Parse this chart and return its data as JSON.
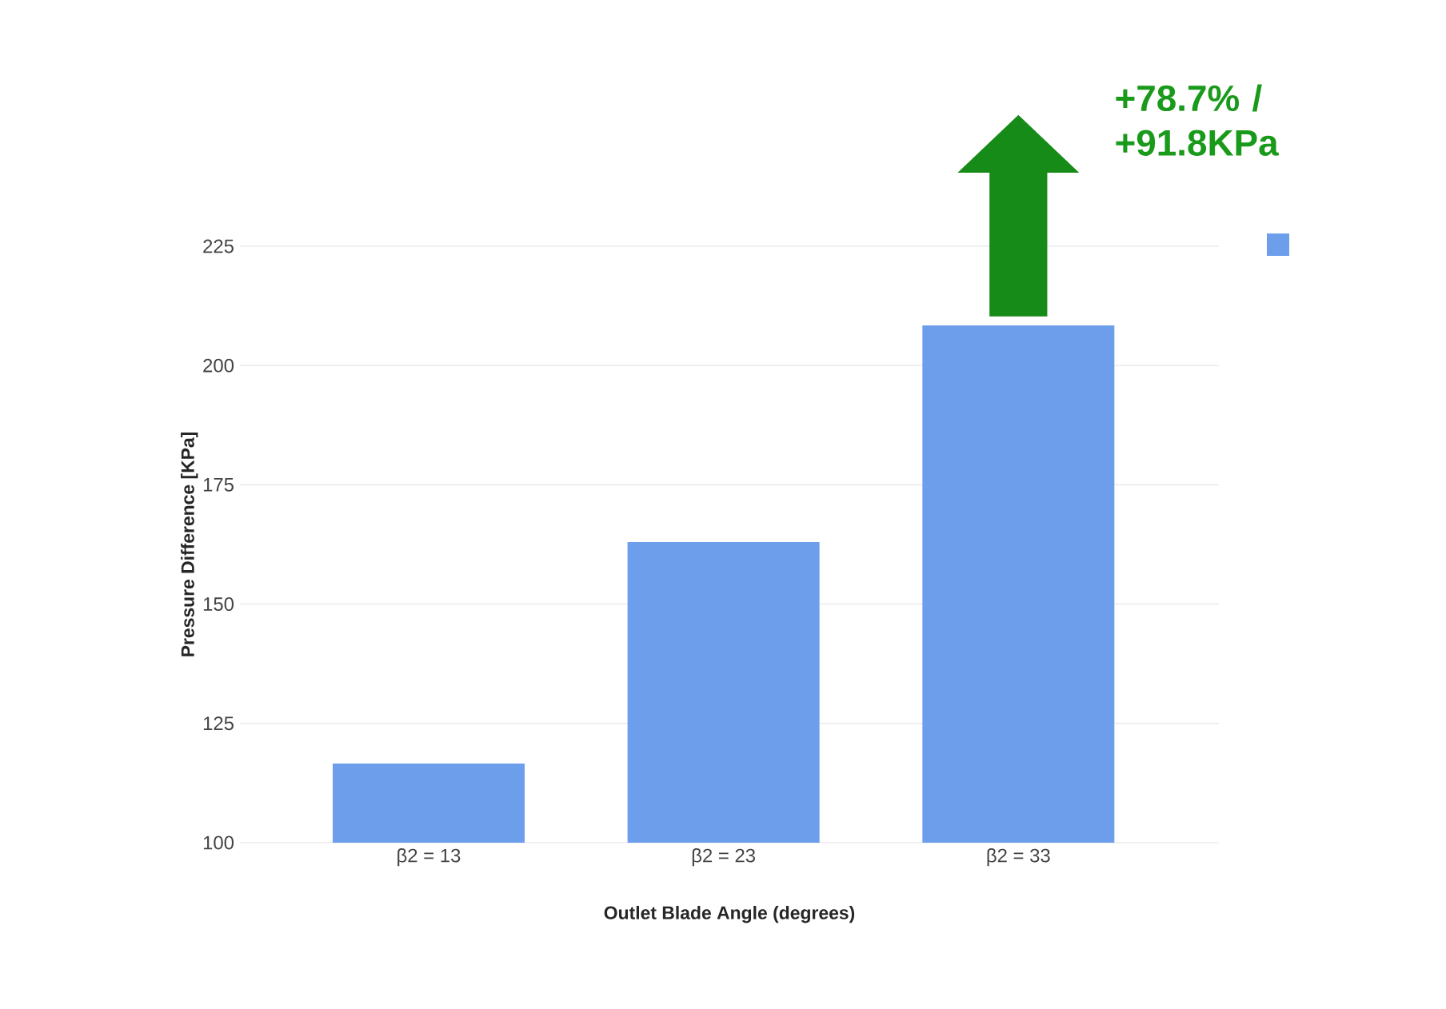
{
  "chart_data": {
    "type": "bar",
    "xlabel": "Outlet Blade Angle (degrees)",
    "ylabel": "Pressure Difference [KPa]",
    "categories": [
      "β2 = 13",
      "β2 = 23",
      "β2 = 33"
    ],
    "values": [
      116.6,
      163,
      208.4
    ],
    "color": "#6d9eeb",
    "ylim": [
      100,
      225
    ],
    "yticks": [
      100,
      125,
      150,
      175,
      200,
      225
    ],
    "grid": "y",
    "annotations": [
      "+78.7% / +91.8KPa"
    ]
  }
}
